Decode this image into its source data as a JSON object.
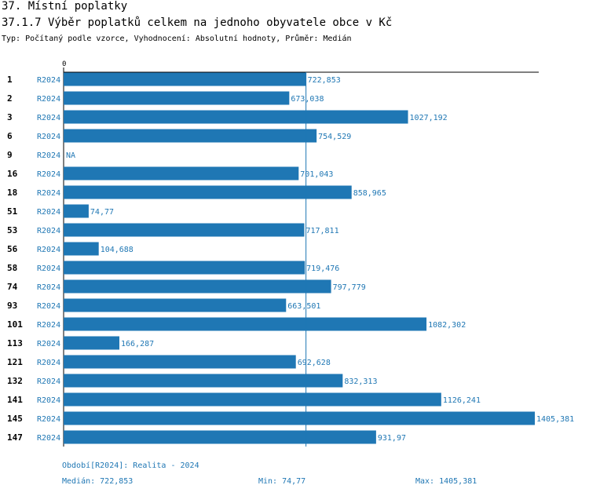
{
  "header": {
    "title": "37. Místní poplatky",
    "subtitle": "37.1.7 Výběr poplatků celkem na jednoho obyvatele obce v  Kč",
    "type_line": "Typ: Počítaný podle vzorce, Vyhodnocení: Absolutní hodnoty, Průměr: Medián"
  },
  "chart_data": {
    "type": "bar",
    "orientation": "horizontal",
    "axis_zero_label": "0",
    "categories": [
      "1",
      "2",
      "3",
      "6",
      "9",
      "16",
      "18",
      "51",
      "53",
      "56",
      "58",
      "74",
      "93",
      "101",
      "113",
      "121",
      "132",
      "141",
      "145",
      "147"
    ],
    "series_label": "R2024",
    "values": [
      722.853,
      673.038,
      1027.192,
      754.529,
      null,
      701.043,
      858.965,
      74.77,
      717.811,
      104.688,
      719.476,
      797.779,
      663.501,
      1082.302,
      166.287,
      692.628,
      832.313,
      1126.241,
      1405.381,
      931.97
    ],
    "value_labels": [
      "722,853",
      "673,038",
      "1027,192",
      "754,529",
      "NA",
      "701,043",
      "858,965",
      "74,77",
      "717,811",
      "104,688",
      "719,476",
      "797,779",
      "663,501",
      "1082,302",
      "166,287",
      "692,628",
      "832,313",
      "1126,241",
      "1405,381",
      "931,97"
    ],
    "median": 722.853,
    "xlim": [
      0,
      1405.381
    ],
    "colors": {
      "bar": "#1f77b4",
      "label": "#1f77b4",
      "axis": "#000000",
      "median_line": "#1f77b4"
    }
  },
  "footer": {
    "period": "Období[R2024]: Realita - 2024",
    "median": "Medián: 722,853",
    "min": "Min: 74,77",
    "max": "Max: 1405,381"
  }
}
